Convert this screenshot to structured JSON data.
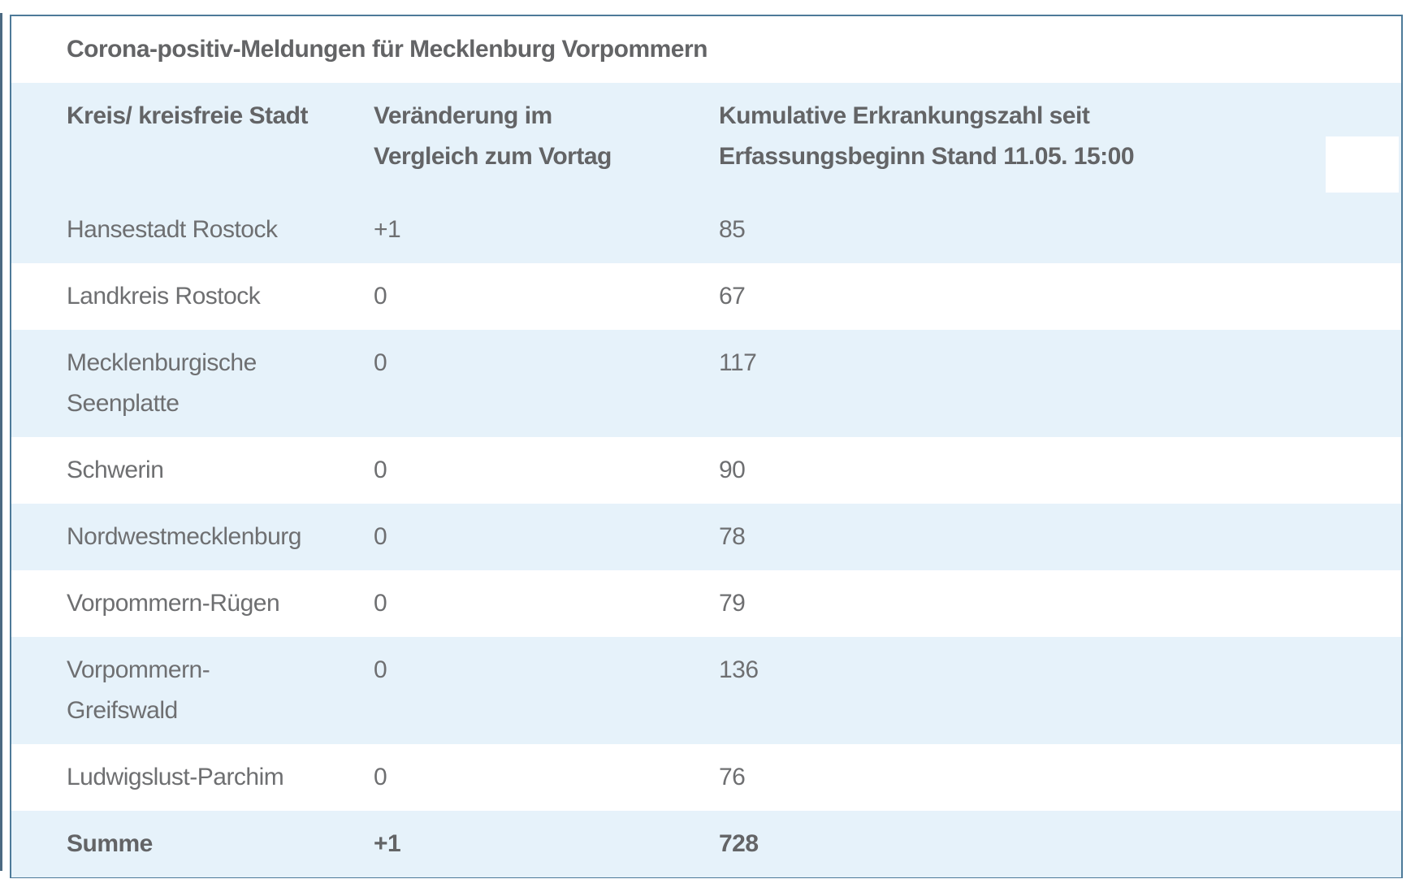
{
  "page": {
    "background_color": "#ffffff",
    "accent_border_color": "#4d7a99",
    "stripe_color": "#e6f2fa",
    "text_color": "#6e6f71",
    "bold_text_color": "#636466"
  },
  "table": {
    "title": "Corona-positiv-Meldungen für Mecklenburg Vorpommern",
    "columns": [
      {
        "label": "Kreis/ kreisfreie Stadt",
        "lines": [
          "Kreis/ kreisfreie Stadt"
        ]
      },
      {
        "label": "Veränderung im Vergleich zum Vortag",
        "lines": [
          "Veränderung im",
          "Vergleich zum Vortag"
        ]
      },
      {
        "label": "Kumulative Erkrankungszahl seit Erfassungsbeginn Stand 11.05. 15:00",
        "lines": [
          "Kumulative Erkrankungszahl seit",
          "Erfassungsbeginn Stand 11.05. 15:00"
        ]
      }
    ],
    "rows": [
      {
        "region": "Hansestadt Rostock",
        "change": "+1",
        "cumulative": "85"
      },
      {
        "region": "Landkreis Rostock",
        "change": "0",
        "cumulative": "67"
      },
      {
        "region": "Mecklenburgische Seenplatte",
        "region_lines": [
          "Mecklenburgische",
          "Seenplatte"
        ],
        "change": "0",
        "cumulative": "117"
      },
      {
        "region": "Schwerin",
        "change": "0",
        "cumulative": "90"
      },
      {
        "region": "Nordwestmecklenburg",
        "change": "0",
        "cumulative": "78"
      },
      {
        "region": "Vorpommern-Rügen",
        "change": "0",
        "cumulative": "79"
      },
      {
        "region": "Vorpommern-Greifswald",
        "region_lines": [
          "Vorpommern-",
          "Greifswald"
        ],
        "change": "0",
        "cumulative": "136"
      },
      {
        "region": "Ludwigslust-Parchim",
        "change": "0",
        "cumulative": "76"
      }
    ],
    "total_row": {
      "region": "Summe",
      "change": "+1",
      "cumulative": "728"
    }
  },
  "chart_data": {
    "type": "table",
    "title": "Corona-positiv-Meldungen für Mecklenburg Vorpommern",
    "columns": [
      "Kreis/ kreisfreie Stadt",
      "Veränderung im Vergleich zum Vortag",
      "Kumulative Erkrankungszahl seit Erfassungsbeginn Stand 11.05. 15:00"
    ],
    "rows": [
      [
        "Hansestadt Rostock",
        "+1",
        85
      ],
      [
        "Landkreis Rostock",
        "0",
        67
      ],
      [
        "Mecklenburgische Seenplatte",
        "0",
        117
      ],
      [
        "Schwerin",
        "0",
        90
      ],
      [
        "Nordwestmecklenburg",
        "0",
        78
      ],
      [
        "Vorpommern-Rügen",
        "0",
        79
      ],
      [
        "Vorpommern-Greifswald",
        "0",
        136
      ],
      [
        "Ludwigslust-Parchim",
        "0",
        76
      ]
    ],
    "total": [
      "Summe",
      "+1",
      728
    ]
  }
}
